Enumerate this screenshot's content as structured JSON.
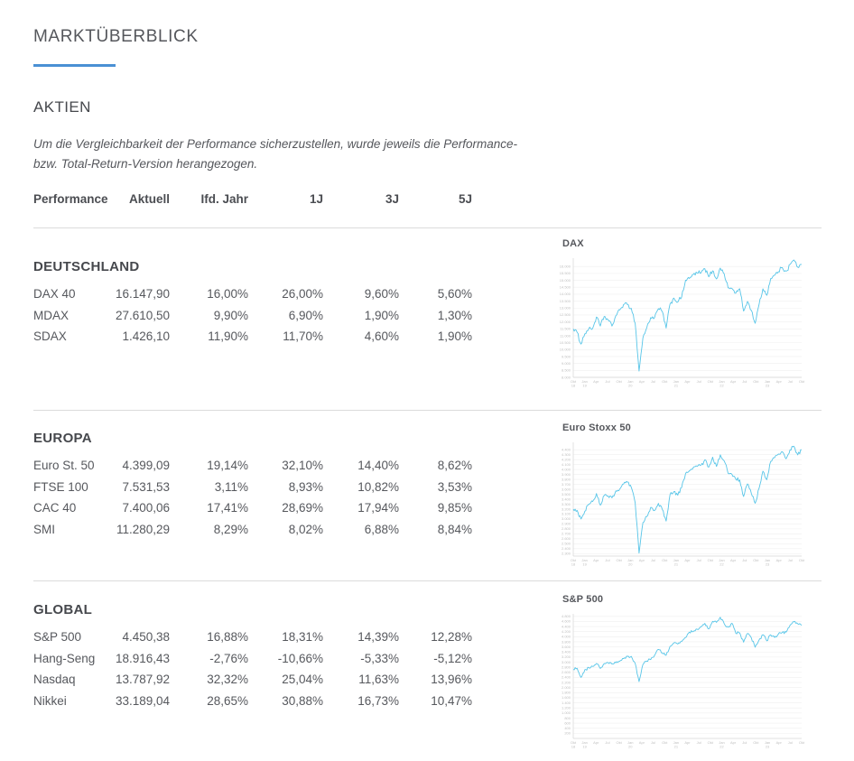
{
  "page": {
    "title": "MARKTÜBERBLICK",
    "section_heading": "AKTIEN",
    "disclaimer_line1": "Um die Vergleichbarkeit der Performance sicherzustellen, wurde jeweils die Performance-",
    "disclaimer_line2": "bzw. Total-Return-Version herangezogen."
  },
  "table": {
    "headers": [
      "Performance",
      "Aktuell",
      "Ifd. Jahr",
      "1J",
      "3J",
      "5J"
    ],
    "sections": [
      {
        "title": "DEUTSCHLAND",
        "rows": [
          [
            "DAX 40",
            "16.147,90",
            "16,00%",
            "26,00%",
            "9,60%",
            "5,60%"
          ],
          [
            "MDAX",
            "27.610,50",
            "9,90%",
            "6,90%",
            "1,90%",
            "1,30%"
          ],
          [
            "SDAX",
            "1.426,10",
            "11,90%",
            "11,70%",
            "4,60%",
            "1,90%"
          ]
        ]
      },
      {
        "title": "EUROPA",
        "rows": [
          [
            "Euro St. 50",
            "4.399,09",
            "19,14%",
            "32,10%",
            "14,40%",
            "8,62%"
          ],
          [
            "FTSE 100",
            "7.531,53",
            "3,11%",
            "8,93%",
            "10,82%",
            "3,53%"
          ],
          [
            "CAC 40",
            "7.400,06",
            "17,41%",
            "28,69%",
            "17,94%",
            "9,85%"
          ],
          [
            "SMI",
            "11.280,29",
            "8,29%",
            "8,02%",
            "6,88%",
            "8,84%"
          ]
        ]
      },
      {
        "title": "GLOBAL",
        "rows": [
          [
            "S&P 500",
            "4.450,38",
            "16,88%",
            "18,31%",
            "14,39%",
            "12,28%"
          ],
          [
            "Hang-Seng",
            "18.916,43",
            "-2,76%",
            "-10,66%",
            "-5,33%",
            "-5,12%"
          ],
          [
            "Nasdaq",
            "13.787,92",
            "32,32%",
            "25,04%",
            "11,63%",
            "13,96%"
          ],
          [
            "Nikkei",
            "33.189,04",
            "28,65%",
            "30,88%",
            "16,73%",
            "10,47%"
          ]
        ]
      }
    ]
  },
  "colors": {
    "accent_blue": "#4a90d4",
    "chart_line": "#57c5e8",
    "divider": "#dbdbdb",
    "grid_line": "#efefef",
    "axis_line": "#d6d6d6",
    "tick_label": "#bfbfbf",
    "heading_text": "#55575c",
    "body_text": "#56585d"
  },
  "chart_data": [
    {
      "type": "line",
      "title": "DAX",
      "x_unit": "month",
      "x_range": "Okt 2018 - Sep 2023",
      "ylim": [
        8000,
        16600
      ],
      "grid": true,
      "legend": false,
      "y_ticks": [
        "16.000",
        "15.500",
        "15.000",
        "14.500",
        "14.000",
        "13.500",
        "13.000",
        "12.500",
        "12.000",
        "11.500",
        "11.000",
        "10.500",
        "10.000",
        "9.500",
        "9.000",
        "8.500",
        "8.000"
      ],
      "x_ticks": [
        "Okt 18",
        "Jan 19",
        "Apr",
        "Jul",
        "Okt",
        "Jan 20",
        "Apr",
        "Jul",
        "Okt",
        "Jan 21",
        "Apr",
        "Jul",
        "Okt",
        "Jan 22",
        "Apr",
        "Jul",
        "Okt",
        "Jan 23",
        "Apr",
        "Jul",
        "Okt"
      ],
      "values": [
        11500,
        11250,
        10400,
        11150,
        11500,
        11520,
        12350,
        11700,
        12400,
        12150,
        11700,
        12450,
        12870,
        13250,
        13250,
        12980,
        11900,
        8450,
        10860,
        11590,
        12310,
        12310,
        12950,
        12760,
        11560,
        13290,
        13720,
        13430,
        13790,
        15010,
        15135,
        15420,
        15530,
        15540,
        15835,
        15260,
        15690,
        15100,
        15885,
        15470,
        14460,
        14410,
        14080,
        14390,
        12780,
        13480,
        12835,
        11900,
        13250,
        14390,
        13925,
        15130,
        15365,
        15630,
        15920,
        15660,
        16150,
        16470,
        15950,
        16148
      ]
    },
    {
      "type": "line",
      "title": "Euro Stoxx 50",
      "x_unit": "month",
      "x_range": "Okt 2018 - Sep 2023",
      "ylim": [
        2250,
        4550
      ],
      "grid": true,
      "legend": false,
      "y_ticks": [
        "4.400",
        "4.300",
        "4.200",
        "4.100",
        "4.000",
        "3.900",
        "3.800",
        "3.700",
        "3.600",
        "3.500",
        "3.400",
        "3.300",
        "3.200",
        "3.100",
        "3.000",
        "2.900",
        "2.800",
        "2.700",
        "2.600",
        "2.500",
        "2.400",
        "2.300"
      ],
      "x_ticks": [
        "Okt 18",
        "Jan 19",
        "Apr",
        "Jul",
        "Okt",
        "Jan 20",
        "Apr",
        "Jul",
        "Okt",
        "Jan 21",
        "Apr",
        "Jul",
        "Okt",
        "Jan 22",
        "Apr",
        "Jul",
        "Okt",
        "Jan 23",
        "Apr",
        "Jul",
        "Okt"
      ],
      "values": [
        3200,
        3173,
        3001,
        3159,
        3298,
        3352,
        3515,
        3280,
        3474,
        3467,
        3427,
        3569,
        3604,
        3704,
        3745,
        3641,
        3329,
        2310,
        2928,
        3050,
        3234,
        3174,
        3316,
        3193,
        2958,
        3493,
        3553,
        3481,
        3636,
        3919,
        3974,
        4039,
        4064,
        4089,
        4196,
        4048,
        4251,
        4063,
        4298,
        4174,
        3924,
        3903,
        3803,
        3789,
        3455,
        3708,
        3517,
        3318,
        3618,
        3965,
        3794,
        4163,
        4238,
        4315,
        4359,
        4218,
        4399,
        4471,
        4297,
        4399
      ]
    },
    {
      "type": "line",
      "title": "S&P 500",
      "x_unit": "month",
      "x_range": "Okt 2018 - Sep 2023",
      "ylim": [
        0,
        4900
      ],
      "grid": true,
      "legend": false,
      "y_ticks": [
        "4.800",
        "4.600",
        "4.400",
        "4.200",
        "4.000",
        "3.800",
        "3.600",
        "3.400",
        "3.200",
        "3.000",
        "2.800",
        "2.600",
        "2.400",
        "2.200",
        "2.000",
        "1.800",
        "1.600",
        "1.400",
        "1.200",
        "1.000",
        "800",
        "600",
        "400",
        "200"
      ],
      "x_ticks": [
        "Okt 18",
        "Jan 19",
        "Apr",
        "Jul",
        "Okt",
        "Jan 20",
        "Apr",
        "Jul",
        "Okt",
        "Jan 21",
        "Apr",
        "Jul",
        "Okt",
        "Jan 22",
        "Apr",
        "Jul",
        "Okt",
        "Jan 23",
        "Apr",
        "Jul",
        "Okt"
      ],
      "values": [
        2712,
        2760,
        2400,
        2704,
        2784,
        2834,
        2946,
        2752,
        2942,
        2980,
        2926,
        2977,
        3038,
        3141,
        3231,
        3226,
        2954,
        2237,
        2912,
        3044,
        3100,
        3271,
        3500,
        3363,
        3270,
        3622,
        3756,
        3714,
        3811,
        3973,
        4181,
        4204,
        4298,
        4395,
        4523,
        4308,
        4605,
        4567,
        4766,
        4516,
        4374,
        4530,
        4132,
        4158,
        3785,
        4130,
        3955,
        3586,
        3872,
        4080,
        3840,
        4077,
        3970,
        4109,
        4169,
        4180,
        4450,
        4589,
        4508,
        4450
      ]
    }
  ]
}
